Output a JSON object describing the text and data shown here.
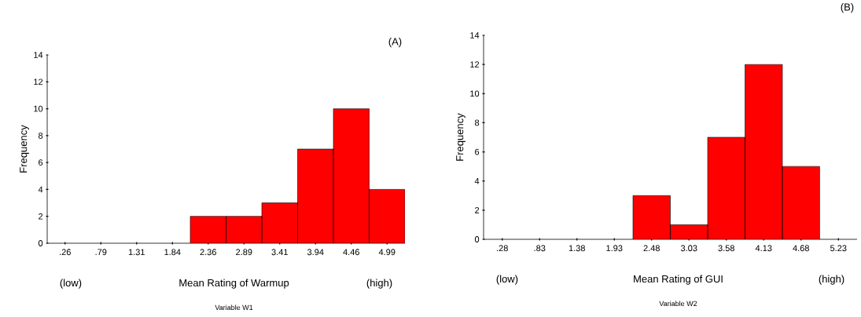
{
  "chart_data": [
    {
      "type": "bar",
      "xlabel": "Mean Rating of Warmup",
      "ylabel": "Frequency",
      "categories": [
        ".26",
        ".79",
        "1.31",
        "1.84",
        "2.36",
        "2.89",
        "3.41",
        "3.94",
        "4.46",
        "4.99"
      ],
      "values": [
        0,
        0,
        0,
        0,
        2,
        2,
        3,
        7,
        10,
        4
      ],
      "color": "#ff0000",
      "ylim": [
        0,
        14
      ],
      "yticks": [
        0,
        2,
        4,
        6,
        8,
        10,
        12,
        14
      ],
      "annotations": [
        "(A)",
        "(low)",
        "(high)",
        "Variable W1"
      ]
    },
    {
      "type": "bar",
      "xlabel": "Mean Rating of GUI",
      "ylabel": "Frequency",
      "categories": [
        ".28",
        ".83",
        "1.38",
        "1.93",
        "2.48",
        "3.03",
        "3.58",
        "4.13",
        "4.68",
        "5.23"
      ],
      "values": [
        0,
        0,
        0,
        0,
        3,
        1,
        7,
        12,
        5,
        0
      ],
      "color": "#ff0000",
      "ylim": [
        0,
        14
      ],
      "yticks": [
        0,
        2,
        4,
        6,
        8,
        10,
        12,
        14
      ],
      "annotations": [
        "(B)",
        "(low)",
        "(high)",
        "Variable W2"
      ]
    }
  ]
}
